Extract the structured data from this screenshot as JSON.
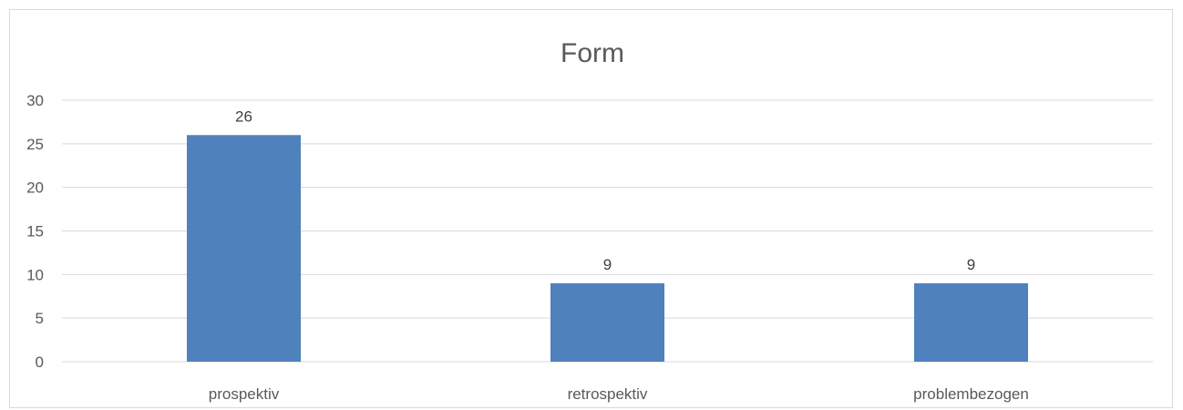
{
  "chart_data": {
    "type": "bar",
    "title": "Form",
    "categories": [
      "prospektiv",
      "retrospektiv",
      "problembezogen"
    ],
    "values": [
      26,
      9,
      9
    ],
    "data_labels": [
      "26",
      "9",
      "9"
    ],
    "ylim": [
      0,
      30
    ],
    "yticks": [
      0,
      5,
      10,
      15,
      20,
      25,
      30
    ],
    "ytick_labels": [
      "0",
      "5",
      "10",
      "15",
      "20",
      "25",
      "30"
    ],
    "xlabel": "",
    "ylabel": "",
    "grid": true,
    "legend": "none",
    "colors": {
      "bar": "#4f81bd",
      "grid": "#d9d9d9",
      "text": "#595959",
      "border": "#d9d9d9"
    }
  }
}
